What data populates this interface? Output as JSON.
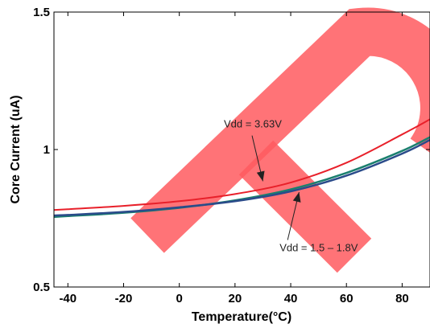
{
  "chart_data": {
    "type": "line",
    "title": "",
    "xlabel": "Temperature(°C)",
    "ylabel": "Core Current (uA)",
    "xlim": [
      -45,
      90
    ],
    "ylim": [
      0.5,
      1.5
    ],
    "x_ticks": [
      -40,
      -20,
      0,
      20,
      40,
      60,
      80
    ],
    "x_tick_labels": [
      "-40",
      "-20",
      "0",
      "20",
      "40",
      "60",
      "80"
    ],
    "y_ticks": [
      0.5,
      1.0,
      1.5
    ],
    "y_tick_labels": [
      "0.5",
      "1",
      "1.5"
    ],
    "grid": false,
    "series": [
      {
        "color": "#e8202a",
        "x": [
          -45,
          -40,
          -20,
          0,
          20,
          40,
          60,
          80,
          90
        ],
        "y": [
          0.78,
          0.783,
          0.795,
          0.812,
          0.838,
          0.88,
          0.952,
          1.055,
          1.11
        ]
      },
      {
        "color": "#1a7f6e",
        "x": [
          -45,
          -40,
          -20,
          0,
          20,
          40,
          60,
          80,
          90
        ],
        "y": [
          0.755,
          0.758,
          0.77,
          0.788,
          0.815,
          0.855,
          0.915,
          0.995,
          1.045
        ]
      },
      {
        "color": "#2a4b8a",
        "x": [
          -45,
          -40,
          -20,
          0,
          20,
          40,
          60,
          80,
          90
        ],
        "y": [
          0.76,
          0.762,
          0.773,
          0.79,
          0.812,
          0.848,
          0.905,
          0.985,
          1.035
        ]
      }
    ],
    "annotations": [
      {
        "text": "Vdd = 3.63V",
        "x": 16,
        "y": 1.08,
        "arrow_to": [
          30,
          0.885
        ]
      },
      {
        "text": "Vdd = 1.5 – 1.8V",
        "x": 36,
        "y": 0.63,
        "arrow_to": [
          43,
          0.845
        ]
      }
    ]
  },
  "watermark": {
    "color": "#ff5a5f"
  }
}
